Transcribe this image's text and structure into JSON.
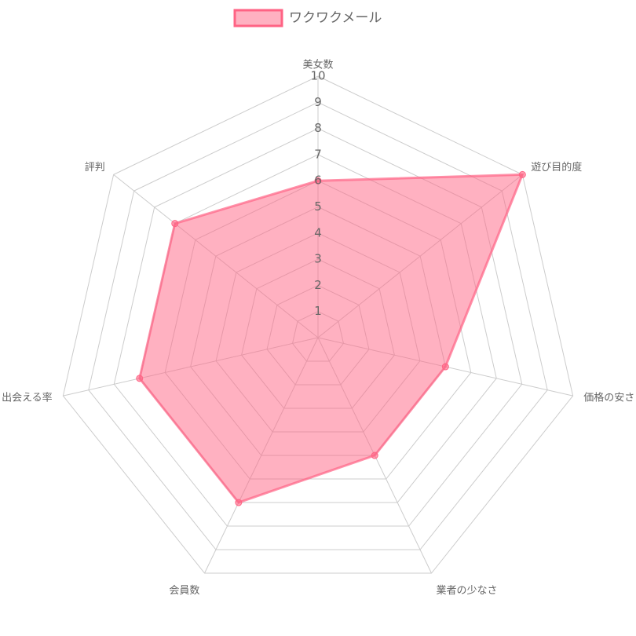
{
  "chart_data": {
    "type": "radar",
    "categories": [
      "美女数",
      "遊び目的度",
      "価格の安さ",
      "業者の少なさ",
      "会員数",
      "出会える率",
      "評判"
    ],
    "series": [
      {
        "name": "ワクワクメール",
        "color": "#ff6384",
        "values": [
          6,
          10,
          5,
          5,
          7,
          7,
          7
        ]
      }
    ],
    "rlim": [
      0,
      10
    ],
    "rticks": [
      1,
      2,
      3,
      4,
      5,
      6,
      7,
      8,
      9,
      10
    ],
    "grid": true,
    "legend": "top"
  }
}
